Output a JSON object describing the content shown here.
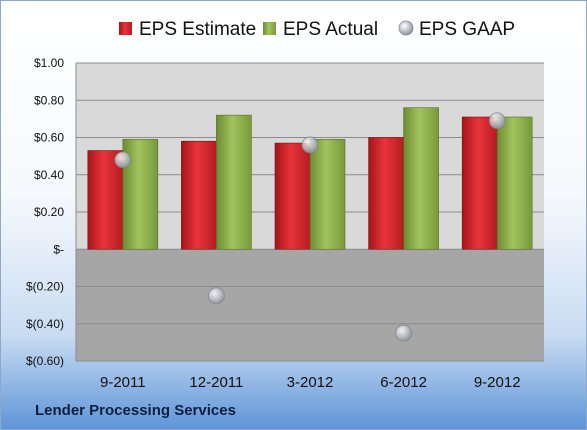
{
  "footer": {
    "company": "Lender Processing Services"
  },
  "colors": {
    "estimate": "#d8242b",
    "actual": "#8db04a",
    "gaap": "#b8bcc4",
    "plot_positive": "#d9d9d9",
    "plot_negative": "#a6a6a6"
  },
  "chart_data": {
    "type": "bar",
    "categories": [
      "9-2011",
      "12-2011",
      "3-2012",
      "6-2012",
      "9-2012"
    ],
    "series": [
      {
        "name": "EPS Estimate",
        "kind": "bar",
        "values": [
          0.53,
          0.58,
          0.57,
          0.6,
          0.71
        ]
      },
      {
        "name": "EPS Actual",
        "kind": "bar",
        "values": [
          0.59,
          0.72,
          0.59,
          0.76,
          0.71
        ]
      },
      {
        "name": "EPS GAAP",
        "kind": "scatter",
        "values": [
          0.48,
          -0.25,
          0.56,
          -0.45,
          0.69
        ]
      }
    ],
    "ylim": [
      -0.6,
      1.0
    ],
    "yticks": [
      1.0,
      0.8,
      0.6,
      0.4,
      0.2,
      0,
      -0.2,
      -0.4,
      -0.6
    ],
    "ytick_labels": [
      "$1.00",
      "$0.80",
      "$0.60",
      "$0.40",
      "$0.20",
      "$-",
      "$(0.20)",
      "$(0.40)",
      "$(0.60)"
    ],
    "grid": true,
    "legend_position": "top",
    "title": "",
    "xlabel": "",
    "ylabel": ""
  }
}
